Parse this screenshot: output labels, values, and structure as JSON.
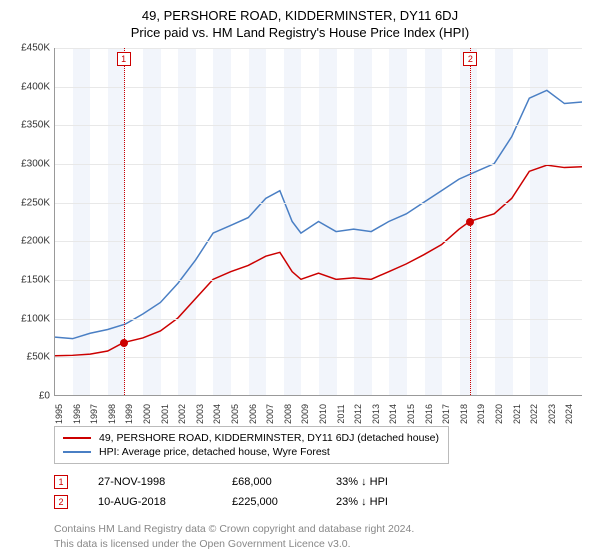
{
  "title_line1": "49, PERSHORE ROAD, KIDDERMINSTER, DY11 6DJ",
  "title_line2": "Price paid vs. HM Land Registry's House Price Index (HPI)",
  "chart": {
    "type": "line",
    "ylim": [
      0,
      450000
    ],
    "ytick_step": 50000,
    "yticks": [
      "£0",
      "£50K",
      "£100K",
      "£150K",
      "£200K",
      "£250K",
      "£300K",
      "£350K",
      "£400K",
      "£450K"
    ],
    "xlim": [
      1995,
      2025
    ],
    "xticks": [
      1995,
      1996,
      1997,
      1998,
      1999,
      2000,
      2001,
      2002,
      2003,
      2004,
      2005,
      2006,
      2007,
      2008,
      2009,
      2010,
      2011,
      2012,
      2013,
      2014,
      2015,
      2016,
      2017,
      2018,
      2019,
      2020,
      2021,
      2022,
      2023,
      2024
    ],
    "band_color": "#f2f5fb",
    "grid_color": "#e8e8e8",
    "series": [
      {
        "name": "property",
        "color": "#cc0000",
        "width": 1.5,
        "data": [
          [
            1995,
            51000
          ],
          [
            1996,
            51500
          ],
          [
            1997,
            53000
          ],
          [
            1998,
            57000
          ],
          [
            1998.9,
            68000
          ],
          [
            2000,
            74000
          ],
          [
            2001,
            83000
          ],
          [
            2002,
            100000
          ],
          [
            2003,
            125000
          ],
          [
            2004,
            150000
          ],
          [
            2005,
            160000
          ],
          [
            2006,
            168000
          ],
          [
            2007,
            180000
          ],
          [
            2007.8,
            185000
          ],
          [
            2008.5,
            160000
          ],
          [
            2009,
            150000
          ],
          [
            2010,
            158000
          ],
          [
            2011,
            150000
          ],
          [
            2012,
            152000
          ],
          [
            2013,
            150000
          ],
          [
            2014,
            160000
          ],
          [
            2015,
            170000
          ],
          [
            2016,
            182000
          ],
          [
            2017,
            195000
          ],
          [
            2018,
            215000
          ],
          [
            2018.6,
            225000
          ],
          [
            2019,
            228000
          ],
          [
            2020,
            235000
          ],
          [
            2021,
            255000
          ],
          [
            2022,
            290000
          ],
          [
            2023,
            298000
          ],
          [
            2024,
            295000
          ],
          [
            2025,
            296000
          ]
        ]
      },
      {
        "name": "hpi",
        "color": "#4a7fc4",
        "width": 1.5,
        "data": [
          [
            1995,
            75000
          ],
          [
            1996,
            73000
          ],
          [
            1997,
            80000
          ],
          [
            1998,
            85000
          ],
          [
            1999,
            92000
          ],
          [
            2000,
            105000
          ],
          [
            2001,
            120000
          ],
          [
            2002,
            145000
          ],
          [
            2003,
            175000
          ],
          [
            2004,
            210000
          ],
          [
            2005,
            220000
          ],
          [
            2006,
            230000
          ],
          [
            2007,
            255000
          ],
          [
            2007.8,
            265000
          ],
          [
            2008.5,
            225000
          ],
          [
            2009,
            210000
          ],
          [
            2010,
            225000
          ],
          [
            2011,
            212000
          ],
          [
            2012,
            215000
          ],
          [
            2013,
            212000
          ],
          [
            2014,
            225000
          ],
          [
            2015,
            235000
          ],
          [
            2016,
            250000
          ],
          [
            2017,
            265000
          ],
          [
            2018,
            280000
          ],
          [
            2019,
            290000
          ],
          [
            2020,
            300000
          ],
          [
            2021,
            335000
          ],
          [
            2022,
            385000
          ],
          [
            2023,
            395000
          ],
          [
            2024,
            378000
          ],
          [
            2025,
            380000
          ]
        ]
      }
    ],
    "sales_markers": [
      {
        "num": "1",
        "x": 1998.9,
        "y": 68000,
        "color": "#cc0000"
      },
      {
        "num": "2",
        "x": 2018.6,
        "y": 225000,
        "color": "#cc0000"
      }
    ]
  },
  "legend": [
    {
      "color": "#cc0000",
      "label": "49, PERSHORE ROAD, KIDDERMINSTER, DY11 6DJ (detached house)"
    },
    {
      "color": "#4a7fc4",
      "label": "HPI: Average price, detached house, Wyre Forest"
    }
  ],
  "sales": [
    {
      "num": "1",
      "color": "#cc0000",
      "date": "27-NOV-1998",
      "price": "£68,000",
      "delta": "33% ↓ HPI"
    },
    {
      "num": "2",
      "color": "#cc0000",
      "date": "10-AUG-2018",
      "price": "£225,000",
      "delta": "23% ↓ HPI"
    }
  ],
  "footer_line1": "Contains HM Land Registry data © Crown copyright and database right 2024.",
  "footer_line2": "This data is licensed under the Open Government Licence v3.0."
}
